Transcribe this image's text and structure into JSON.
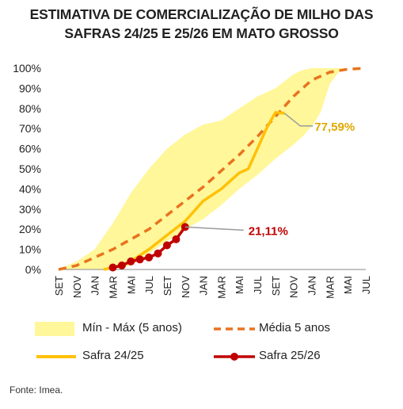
{
  "title": {
    "line1": "ESTIMATIVA DE COMERCIALIZAÇÃO DE MILHO DAS",
    "line2": "SAFRAS 24/25 E 25/26 EM MATO GROSSO"
  },
  "source": "Fonte: Imea.",
  "colors": {
    "band": "#fff799",
    "media": "#e8731f",
    "safra2425": "#ffc107",
    "safra2526": "#c00000",
    "label2425": "#e0a800",
    "label2526": "#c00000",
    "axis": "#888888",
    "leader": "#9a9a9a"
  },
  "chart_data": {
    "type": "line",
    "title": "ESTIMATIVA DE COMERCIALIZAÇÃO DE MILHO DAS SAFRAS 24/25 E 25/26 EM MATO GROSSO",
    "x_tick_labels": [
      "SET",
      "NOV",
      "JAN",
      "MAR",
      "MAI",
      "JUL",
      "SET",
      "NOV",
      "JAN",
      "MAR",
      "MAI",
      "JUL",
      "SET",
      "NOV",
      "JAN",
      "MAR",
      "MAI",
      "JUL"
    ],
    "x_tick_months": [
      0,
      2,
      4,
      6,
      8,
      10,
      12,
      14,
      16,
      18,
      20,
      22,
      24,
      26,
      28,
      30,
      32,
      34
    ],
    "y_ticks": [
      "0%",
      "10%",
      "20%",
      "30%",
      "40%",
      "50%",
      "60%",
      "70%",
      "80%",
      "90%",
      "100%"
    ],
    "ylim": [
      0,
      100
    ],
    "xlim": [
      0,
      34
    ],
    "band": {
      "name": "Mín - Máx (5 anos)",
      "x": [
        0,
        2,
        4,
        6,
        8,
        10,
        12,
        14,
        16,
        18,
        20,
        22,
        24,
        26,
        27,
        28,
        29,
        30,
        31,
        32,
        34
      ],
      "upper": [
        0,
        4,
        10,
        23,
        38,
        50,
        60,
        67,
        72,
        74,
        80,
        86,
        90,
        97,
        99,
        100,
        100,
        100,
        100,
        100,
        100
      ],
      "lower": [
        0,
        0,
        0,
        0,
        2,
        8,
        14,
        20,
        25,
        32,
        40,
        47,
        55,
        62,
        66,
        71,
        78,
        92,
        98,
        100,
        100
      ]
    },
    "series": [
      {
        "name": "Média 5 anos",
        "style": "dashed",
        "x": [
          0,
          2,
          4,
          6,
          8,
          10,
          12,
          14,
          16,
          18,
          20,
          22,
          24,
          26,
          28,
          30,
          32,
          34
        ],
        "values": [
          0,
          2,
          6,
          10,
          15,
          20,
          27,
          34,
          41,
          49,
          57,
          66,
          76,
          86,
          94,
          98,
          99.5,
          100
        ]
      },
      {
        "name": "Safra 24/25",
        "style": "solid",
        "x": [
          5,
          7,
          8,
          10,
          12,
          14,
          16,
          18,
          20,
          21,
          22,
          23,
          24,
          25
        ],
        "values": [
          0,
          2,
          4,
          10,
          17,
          24,
          34,
          40,
          48,
          50,
          60,
          70,
          78,
          77.59
        ],
        "end_label": "77,59%"
      },
      {
        "name": "Safra 25/26",
        "style": "solid-markers",
        "x": [
          6,
          7,
          8,
          9,
          10,
          11,
          12,
          13
        ],
        "values": [
          1,
          2,
          4,
          5,
          6,
          8,
          12,
          15
        ],
        "tail": {
          "x": 14,
          "value": 21.11
        },
        "end_label": "21,11%"
      }
    ],
    "annotations": [
      "77,59%",
      "21,11%"
    ],
    "legend": {
      "placement": "bottom",
      "entries": [
        "Mín - Máx (5 anos)",
        "Média 5 anos",
        "Safra 24/25",
        "Safra 25/26"
      ]
    },
    "grid": false
  }
}
